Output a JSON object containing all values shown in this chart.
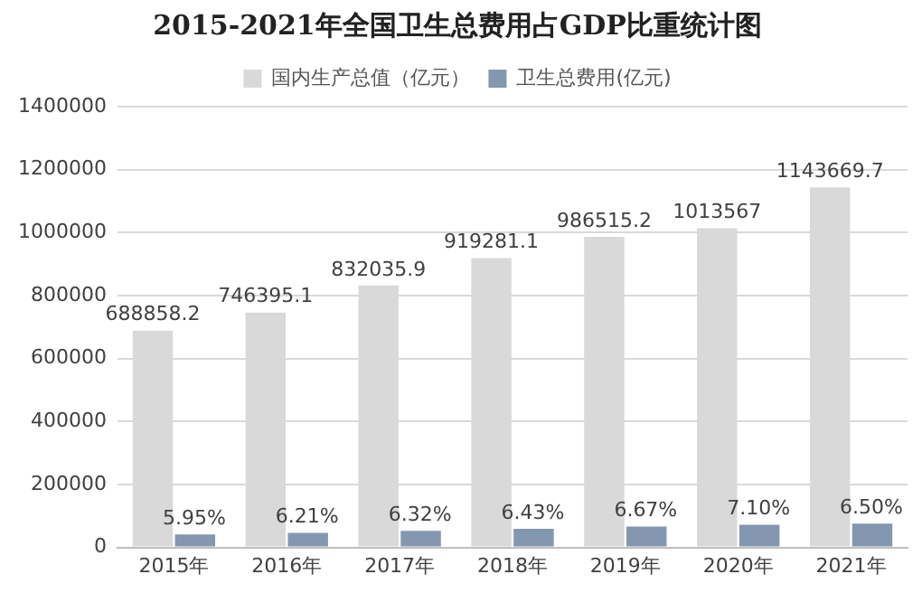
{
  "chart_data": {
    "type": "bar",
    "title": "2015-2021年全国卫生总费用占GDP比重统计图",
    "categories": [
      "2015年",
      "2016年",
      "2017年",
      "2018年",
      "2019年",
      "2020年",
      "2021年"
    ],
    "series": [
      {
        "name": "国内生产总值（亿元）",
        "color": "#d9d9d9",
        "values": [
          688858.2,
          746395.1,
          832035.9,
          919281.1,
          986515.2,
          1013567,
          1143669.7
        ],
        "value_labels": [
          "688858.2",
          "746395.1",
          "832035.9",
          "919281.1",
          "986515.2",
          "1013567",
          "1143669.7"
        ]
      },
      {
        "name": "卫生总费用(亿元)",
        "color": "#8497b0",
        "values": [
          41000,
          46000,
          53000,
          59000,
          66000,
          72000,
          76000
        ]
      }
    ],
    "annotations": [
      {
        "text": "5.95%",
        "x": "2015年",
        "y": 41000
      },
      {
        "text": "6.21%",
        "x": "2016年",
        "y": 46000
      },
      {
        "text": "6.32%",
        "x": "2017年",
        "y": 53000
      },
      {
        "text": "6.43%",
        "x": "2018年",
        "y": 59000
      },
      {
        "text": "6.67%",
        "x": "2019年",
        "y": 66000
      },
      {
        "text": "7.10%",
        "x": "2020年",
        "y": 72000
      },
      {
        "text": "6.50%",
        "x": "2021年",
        "y": 76000
      }
    ],
    "ylim": [
      0,
      1400000
    ],
    "yticks": [
      0,
      200000,
      400000,
      600000,
      800000,
      1000000,
      1200000,
      1400000
    ],
    "grid": "y",
    "legend": "top"
  }
}
